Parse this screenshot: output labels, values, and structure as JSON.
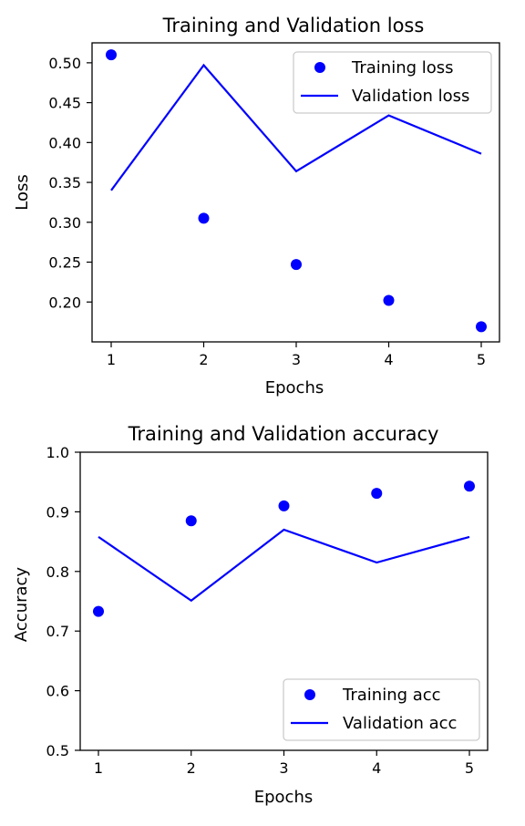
{
  "chart_data": [
    {
      "type": "scatter+line",
      "title": "Training and Validation loss",
      "xlabel": "Epochs",
      "ylabel": "Loss",
      "x": [
        1,
        2,
        3,
        4,
        5
      ],
      "xticks": [
        "1",
        "2",
        "3",
        "4",
        "5"
      ],
      "yticks": [
        "0.20",
        "0.25",
        "0.30",
        "0.35",
        "0.40",
        "0.45",
        "0.50"
      ],
      "ylim": [
        0.15,
        0.525
      ],
      "grid": false,
      "legend_position": "top-right",
      "series": [
        {
          "name": "Training loss",
          "kind": "scatter",
          "color": "#0000ff",
          "values": [
            0.51,
            0.305,
            0.247,
            0.202,
            0.169
          ]
        },
        {
          "name": "Validation loss",
          "kind": "line",
          "color": "#0000ff",
          "values": [
            0.34,
            0.497,
            0.364,
            0.434,
            0.386
          ]
        }
      ]
    },
    {
      "type": "scatter+line",
      "title": "Training and Validation accuracy",
      "xlabel": "Epochs",
      "ylabel": "Accuracy",
      "x": [
        1,
        2,
        3,
        4,
        5
      ],
      "xticks": [
        "1",
        "2",
        "3",
        "4",
        "5"
      ],
      "yticks": [
        "0.5",
        "0.6",
        "0.7",
        "0.8",
        "0.9",
        "1.0"
      ],
      "ylim": [
        0.5,
        1.0
      ],
      "grid": false,
      "legend_position": "bottom-right",
      "series": [
        {
          "name": "Training acc",
          "kind": "scatter",
          "color": "#0000ff",
          "values": [
            0.733,
            0.885,
            0.91,
            0.931,
            0.943
          ]
        },
        {
          "name": "Validation acc",
          "kind": "line",
          "color": "#0000ff",
          "values": [
            0.858,
            0.751,
            0.87,
            0.815,
            0.858
          ]
        }
      ]
    }
  ]
}
